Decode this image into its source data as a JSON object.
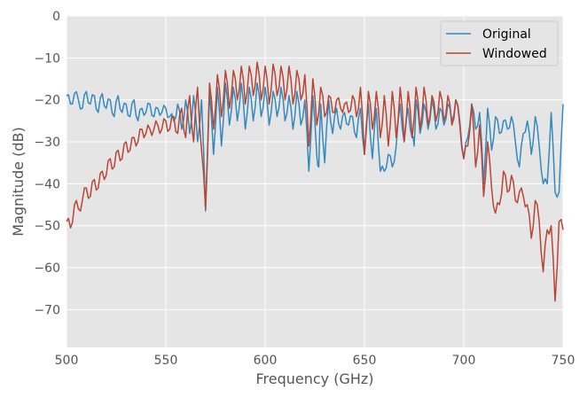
{
  "chart_data": {
    "type": "line",
    "title": "",
    "xlabel": "Frequency (GHz)",
    "ylabel": "Magnitude (dB)",
    "xlim": [
      500,
      750
    ],
    "ylim": [
      -79,
      0
    ],
    "xticks": [
      500,
      550,
      600,
      650,
      700,
      750
    ],
    "yticks": [
      0,
      -10,
      -20,
      -30,
      -40,
      -50,
      -60,
      -70
    ],
    "xtick_labels": [
      "500",
      "550",
      "600",
      "650",
      "700",
      "750"
    ],
    "ytick_labels": [
      "0",
      "−10",
      "−20",
      "−30",
      "−40",
      "−50",
      "−60",
      "−70"
    ],
    "grid": true,
    "legend_position": "top-right",
    "series": [
      {
        "name": "Original",
        "color": "#348abd",
        "x": [
          500,
          502,
          504,
          506,
          508,
          510,
          512,
          514,
          516,
          518,
          520,
          522,
          524,
          526,
          528,
          530,
          532,
          534,
          536,
          538,
          540,
          542,
          544,
          546,
          548,
          550,
          552,
          554,
          556,
          558,
          560,
          562,
          564,
          566,
          568,
          570,
          572,
          574,
          576,
          578,
          580,
          582,
          584,
          586,
          588,
          590,
          592,
          594,
          596,
          598,
          600,
          602,
          604,
          606,
          608,
          610,
          612,
          614,
          616,
          618,
          620,
          622,
          624,
          626,
          628,
          630,
          632,
          634,
          636,
          638,
          640,
          642,
          644,
          646,
          648,
          650,
          652,
          654,
          656,
          658,
          660,
          662,
          664,
          666,
          668,
          670,
          672,
          674,
          676,
          678,
          680,
          682,
          684,
          686,
          688,
          690,
          692,
          694,
          696,
          698,
          700,
          702,
          704,
          706,
          708,
          710,
          712,
          714,
          716,
          718,
          720,
          722,
          724,
          726,
          728,
          730,
          732,
          734,
          736,
          738,
          740,
          742,
          744,
          746,
          748,
          750
        ],
        "values": [
          -19,
          -21,
          -18.5,
          -20,
          -22,
          -18,
          -21,
          -19,
          -23,
          -18.5,
          -22,
          -20,
          -24,
          -19,
          -23,
          -21,
          -24,
          -20,
          -25,
          -22,
          -23,
          -21,
          -24,
          -22,
          -23,
          -22,
          -24,
          -25,
          -21,
          -27,
          -20,
          -28,
          -19,
          -30,
          -20,
          -46,
          -18,
          -32,
          -17,
          -28,
          -16,
          -26,
          -17,
          -25,
          -16,
          -27,
          -17,
          -25,
          -16,
          -24,
          -17,
          -26,
          -18,
          -24,
          -17,
          -25,
          -19,
          -27,
          -18,
          -26,
          -20,
          -36,
          -19,
          -33,
          -21,
          -35,
          -20,
          -28,
          -22,
          -27,
          -23,
          -26,
          -24,
          -29,
          -22,
          -33,
          -21,
          -34,
          -22,
          -37,
          -23,
          -33,
          -22,
          -31,
          -21,
          -30,
          -22,
          -29,
          -20,
          -28,
          -21,
          -27,
          -20,
          -27,
          -22,
          -26,
          -21,
          -25,
          -20,
          -25,
          -22,
          -29,
          -21,
          -27,
          -23,
          -36,
          -22,
          -32,
          -24,
          -28,
          -25,
          -27,
          -24,
          -30,
          -26,
          -28,
          -25,
          -33,
          -24,
          -31,
          -22,
          -40,
          -23,
          -28,
          -42,
          -21
        ],
        "dips": [
          [
            570,
            -46.5
          ],
          [
            574,
            -33
          ],
          [
            578,
            -31
          ],
          [
            622,
            -37
          ],
          [
            627,
            -36
          ],
          [
            650,
            -33
          ],
          [
            660,
            -37
          ],
          [
            664,
            -36
          ],
          [
            675,
            -31
          ],
          [
            700,
            -34
          ],
          [
            710,
            -40
          ],
          [
            728,
            -36
          ],
          [
            740,
            -40
          ],
          [
            746,
            -42
          ]
        ]
      },
      {
        "name": "Windowed",
        "color": "#b94634",
        "x": [
          500,
          502,
          504,
          506,
          508,
          510,
          512,
          514,
          516,
          518,
          520,
          522,
          524,
          526,
          528,
          530,
          532,
          534,
          536,
          538,
          540,
          542,
          544,
          546,
          548,
          550,
          552,
          554,
          556,
          558,
          560,
          562,
          564,
          566,
          568,
          570,
          572,
          574,
          576,
          578,
          580,
          582,
          584,
          586,
          588,
          590,
          592,
          594,
          596,
          598,
          600,
          602,
          604,
          606,
          608,
          610,
          612,
          614,
          616,
          618,
          620,
          622,
          624,
          626,
          628,
          630,
          632,
          634,
          636,
          638,
          640,
          642,
          644,
          646,
          648,
          650,
          652,
          654,
          656,
          658,
          660,
          662,
          664,
          666,
          668,
          670,
          672,
          674,
          676,
          678,
          680,
          682,
          684,
          686,
          688,
          690,
          692,
          694,
          696,
          698,
          700,
          702,
          704,
          706,
          708,
          710,
          712,
          714,
          716,
          718,
          720,
          722,
          724,
          726,
          728,
          730,
          732,
          734,
          736,
          738,
          740,
          742,
          744,
          746,
          748,
          750
        ],
        "values": [
          -49,
          -50.5,
          -45,
          -46,
          -44,
          -41,
          -43,
          -39,
          -41,
          -37,
          -38,
          -34,
          -36,
          -32,
          -34,
          -30,
          -32,
          -29,
          -30,
          -27,
          -28,
          -27,
          -27,
          -26,
          -27,
          -25,
          -27,
          -24,
          -28,
          -22,
          -29,
          -19,
          -30,
          -17,
          -32,
          -45,
          -16,
          -27,
          -14,
          -24,
          -13,
          -22,
          -13,
          -20,
          -12,
          -21,
          -12,
          -19,
          -11,
          -20,
          -12,
          -21,
          -11.5,
          -19,
          -12,
          -20,
          -12,
          -21,
          -13,
          -20,
          -14,
          -22,
          -15,
          -26,
          -17,
          -24,
          -19,
          -23,
          -20,
          -22,
          -21,
          -23,
          -19,
          -24,
          -17,
          -26,
          -18,
          -27,
          -18,
          -29,
          -19,
          -31,
          -18,
          -29,
          -17,
          -30,
          -18,
          -29,
          -17,
          -27,
          -17,
          -26,
          -19,
          -25,
          -18,
          -25,
          -19,
          -26,
          -20,
          -26,
          -22,
          -31,
          -21,
          -35,
          -26,
          -43,
          -30,
          -41,
          -34,
          -45,
          -37,
          -42,
          -38,
          -44,
          -42,
          -43,
          -45,
          -51,
          -44,
          -49,
          -60,
          -51,
          -50,
          -66,
          -49,
          -51
        ],
        "dips": [
          [
            570,
            -46
          ],
          [
            622,
            -31
          ],
          [
            650,
            -33
          ],
          [
            700,
            -34
          ],
          [
            706,
            -36
          ],
          [
            710,
            -43
          ],
          [
            716,
            -47
          ],
          [
            734,
            -53
          ],
          [
            740,
            -61
          ],
          [
            746,
            -68
          ]
        ]
      }
    ]
  }
}
